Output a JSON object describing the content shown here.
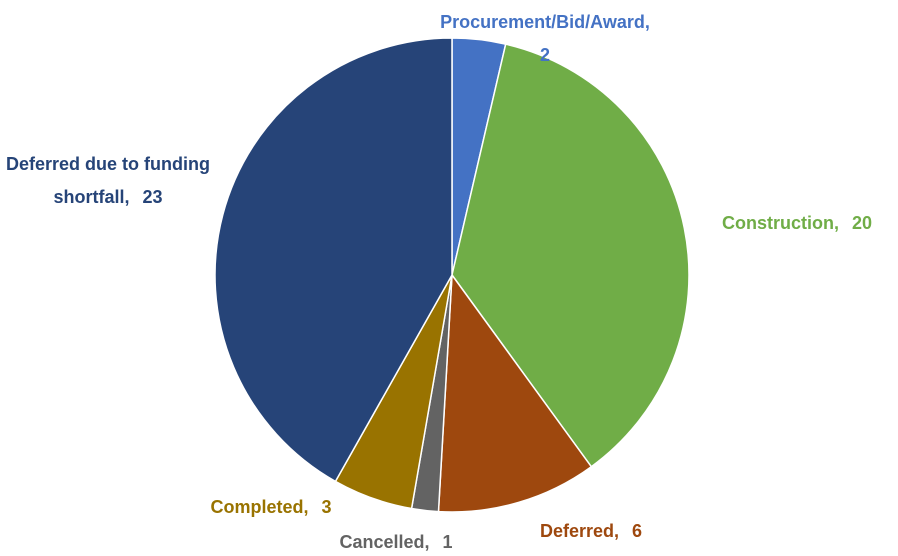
{
  "chart_data": {
    "type": "pie",
    "categories": [
      "Procurement/Bid/Award,",
      "Construction,",
      "Deferred,",
      "Cancelled,",
      "Completed,",
      "Deferred due to funding shortfall,"
    ],
    "values": [
      2,
      20,
      6,
      1,
      3,
      23
    ],
    "colors": [
      "#4472c4",
      "#70ad47",
      "#9e480e",
      "#636363",
      "#997300",
      "#264478"
    ]
  }
}
